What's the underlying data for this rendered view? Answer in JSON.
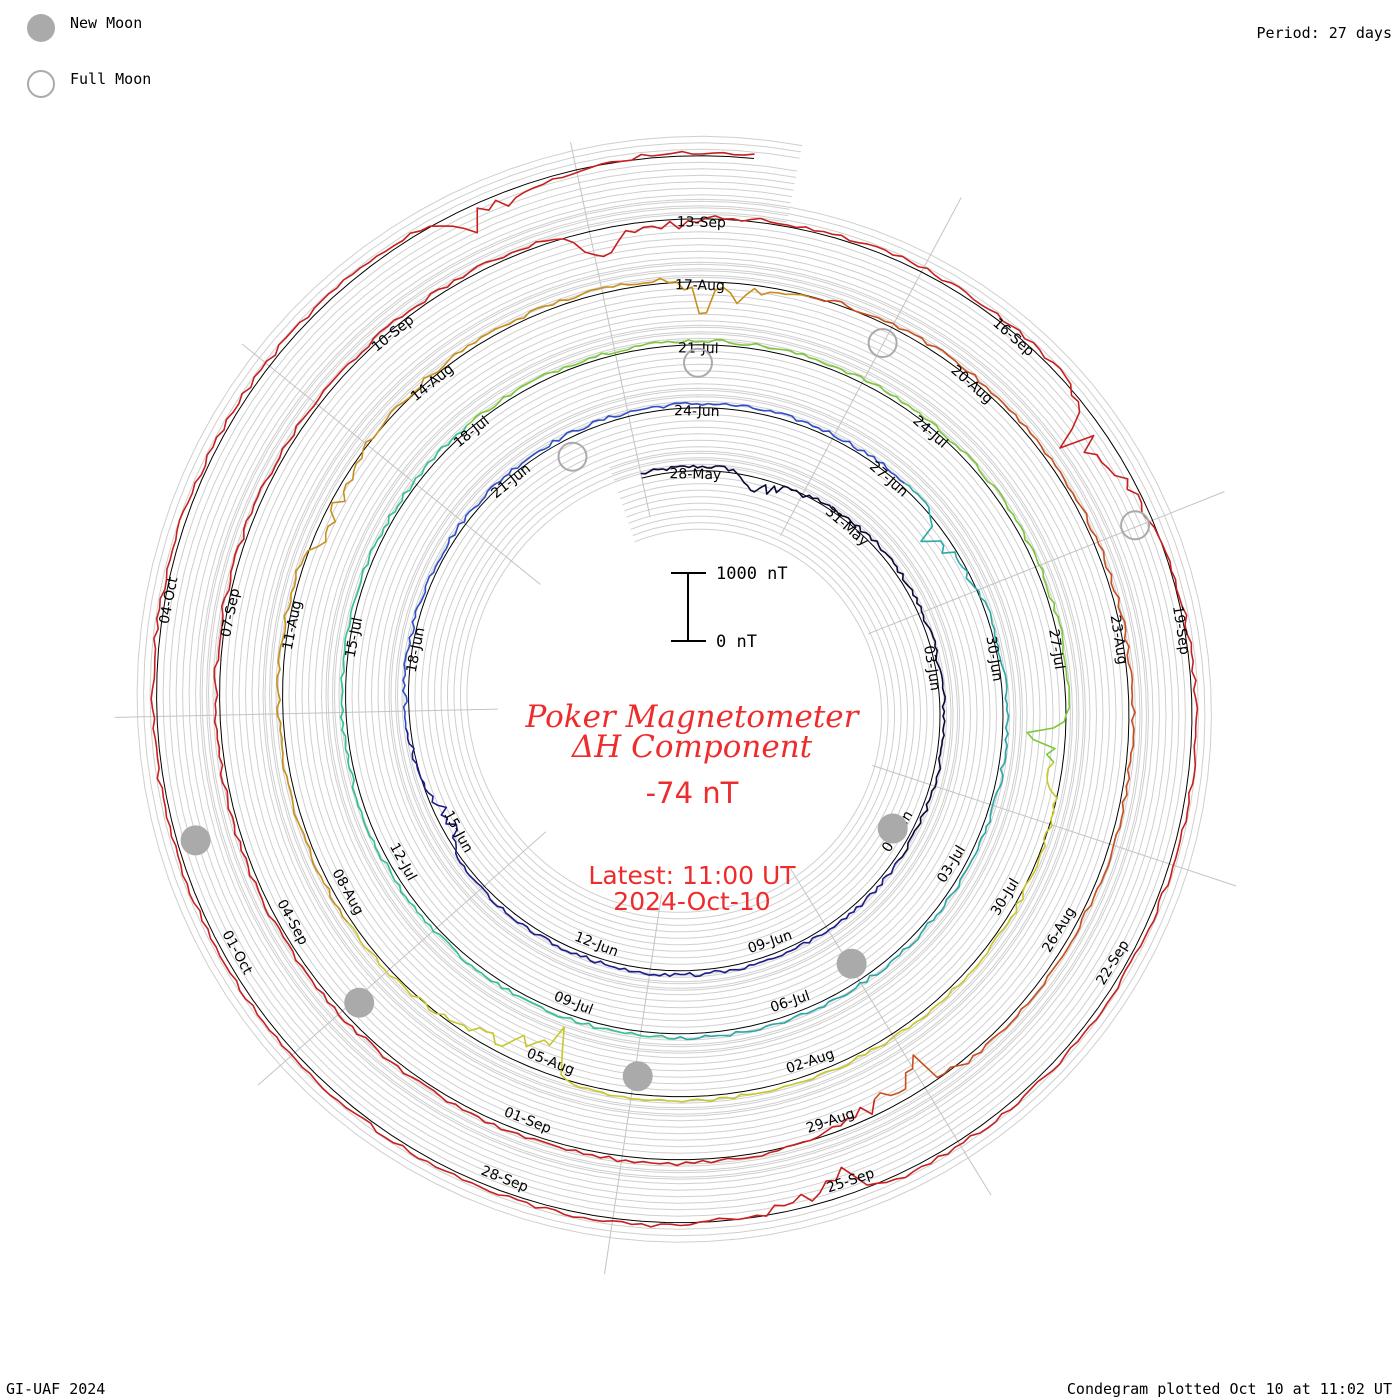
{
  "legend": {
    "new_moon": "New Moon",
    "full_moon": "Full Moon",
    "new_moon_color": "#aaaaaa",
    "full_moon_color": "#aaaaaa"
  },
  "period": "Period: 27 days",
  "footer_left": "GI-UAF 2024",
  "footer_right": "Condegram plotted Oct 10 at 11:02 UT",
  "title_line1": "Poker Magnetometer",
  "title_line2": "ΔH Component",
  "current_value": "-74 nT",
  "latest_time": "Latest: 11:00 UT",
  "latest_date": "2024-Oct-10",
  "scale": {
    "top": "1000 nT",
    "bottom": "0 nT"
  },
  "chart_data": {
    "type": "line",
    "layout": "spiral condegram",
    "period_days": 27,
    "start_date": "2024-05-27",
    "end_date": "2024-10-10",
    "latest_value_nT": -74,
    "scale_bar_nT": [
      0,
      1000
    ],
    "date_labels": [
      "28-May",
      "31-May",
      "03-Jun",
      "06-Jun",
      "09-Jun",
      "12-Jun",
      "15-Jun",
      "18-Jun",
      "21-Jun",
      "24-Jun",
      "27-Jun",
      "30-Jun",
      "03-Jul",
      "06-Jul",
      "09-Jul",
      "12-Jul",
      "15-Jul",
      "18-Jul",
      "21-Jul",
      "24-Jul",
      "27-Jul",
      "30-Jul",
      "02-Aug",
      "05-Aug",
      "08-Aug",
      "11-Aug",
      "14-Aug",
      "17-Aug",
      "20-Aug",
      "23-Aug",
      "26-Aug",
      "29-Aug",
      "01-Sep",
      "04-Sep",
      "07-Sep",
      "10-Sep",
      "13-Sep",
      "16-Sep",
      "19-Sep",
      "22-Sep",
      "25-Sep",
      "28-Sep",
      "01-Oct",
      "04-Oct"
    ],
    "new_moons": [
      "2024-06-06",
      "2024-07-05",
      "2024-08-04",
      "2024-09-03",
      "2024-10-02"
    ],
    "full_moons": [
      "2024-06-22",
      "2024-07-21",
      "2024-08-19",
      "2024-09-18"
    ],
    "series_colors": [
      "#0a0a3a",
      "#1c1c8c",
      "#2f4fc8",
      "#2aa8a8",
      "#2ec48a",
      "#7cc83a",
      "#c8c828",
      "#c8901a",
      "#c8501e",
      "#c82020"
    ],
    "disturbances": [
      {
        "date": "2024-05-29",
        "deltaH_nT": -400
      },
      {
        "date": "2024-06-15",
        "deltaH_nT": -350
      },
      {
        "date": "2024-06-28",
        "deltaH_nT": -300
      },
      {
        "date": "2024-07-28",
        "deltaH_nT": -500
      },
      {
        "date": "2024-08-05",
        "deltaH_nT": -700
      },
      {
        "date": "2024-08-12",
        "deltaH_nT": -400
      },
      {
        "date": "2024-08-17",
        "deltaH_nT": -500
      },
      {
        "date": "2024-08-28",
        "deltaH_nT": -600
      },
      {
        "date": "2024-09-12",
        "deltaH_nT": -500
      },
      {
        "date": "2024-09-17",
        "deltaH_nT": -650
      },
      {
        "date": "2024-09-25",
        "deltaH_nT": -450
      },
      {
        "date": "2024-10-08",
        "deltaH_nT": -400
      }
    ]
  }
}
